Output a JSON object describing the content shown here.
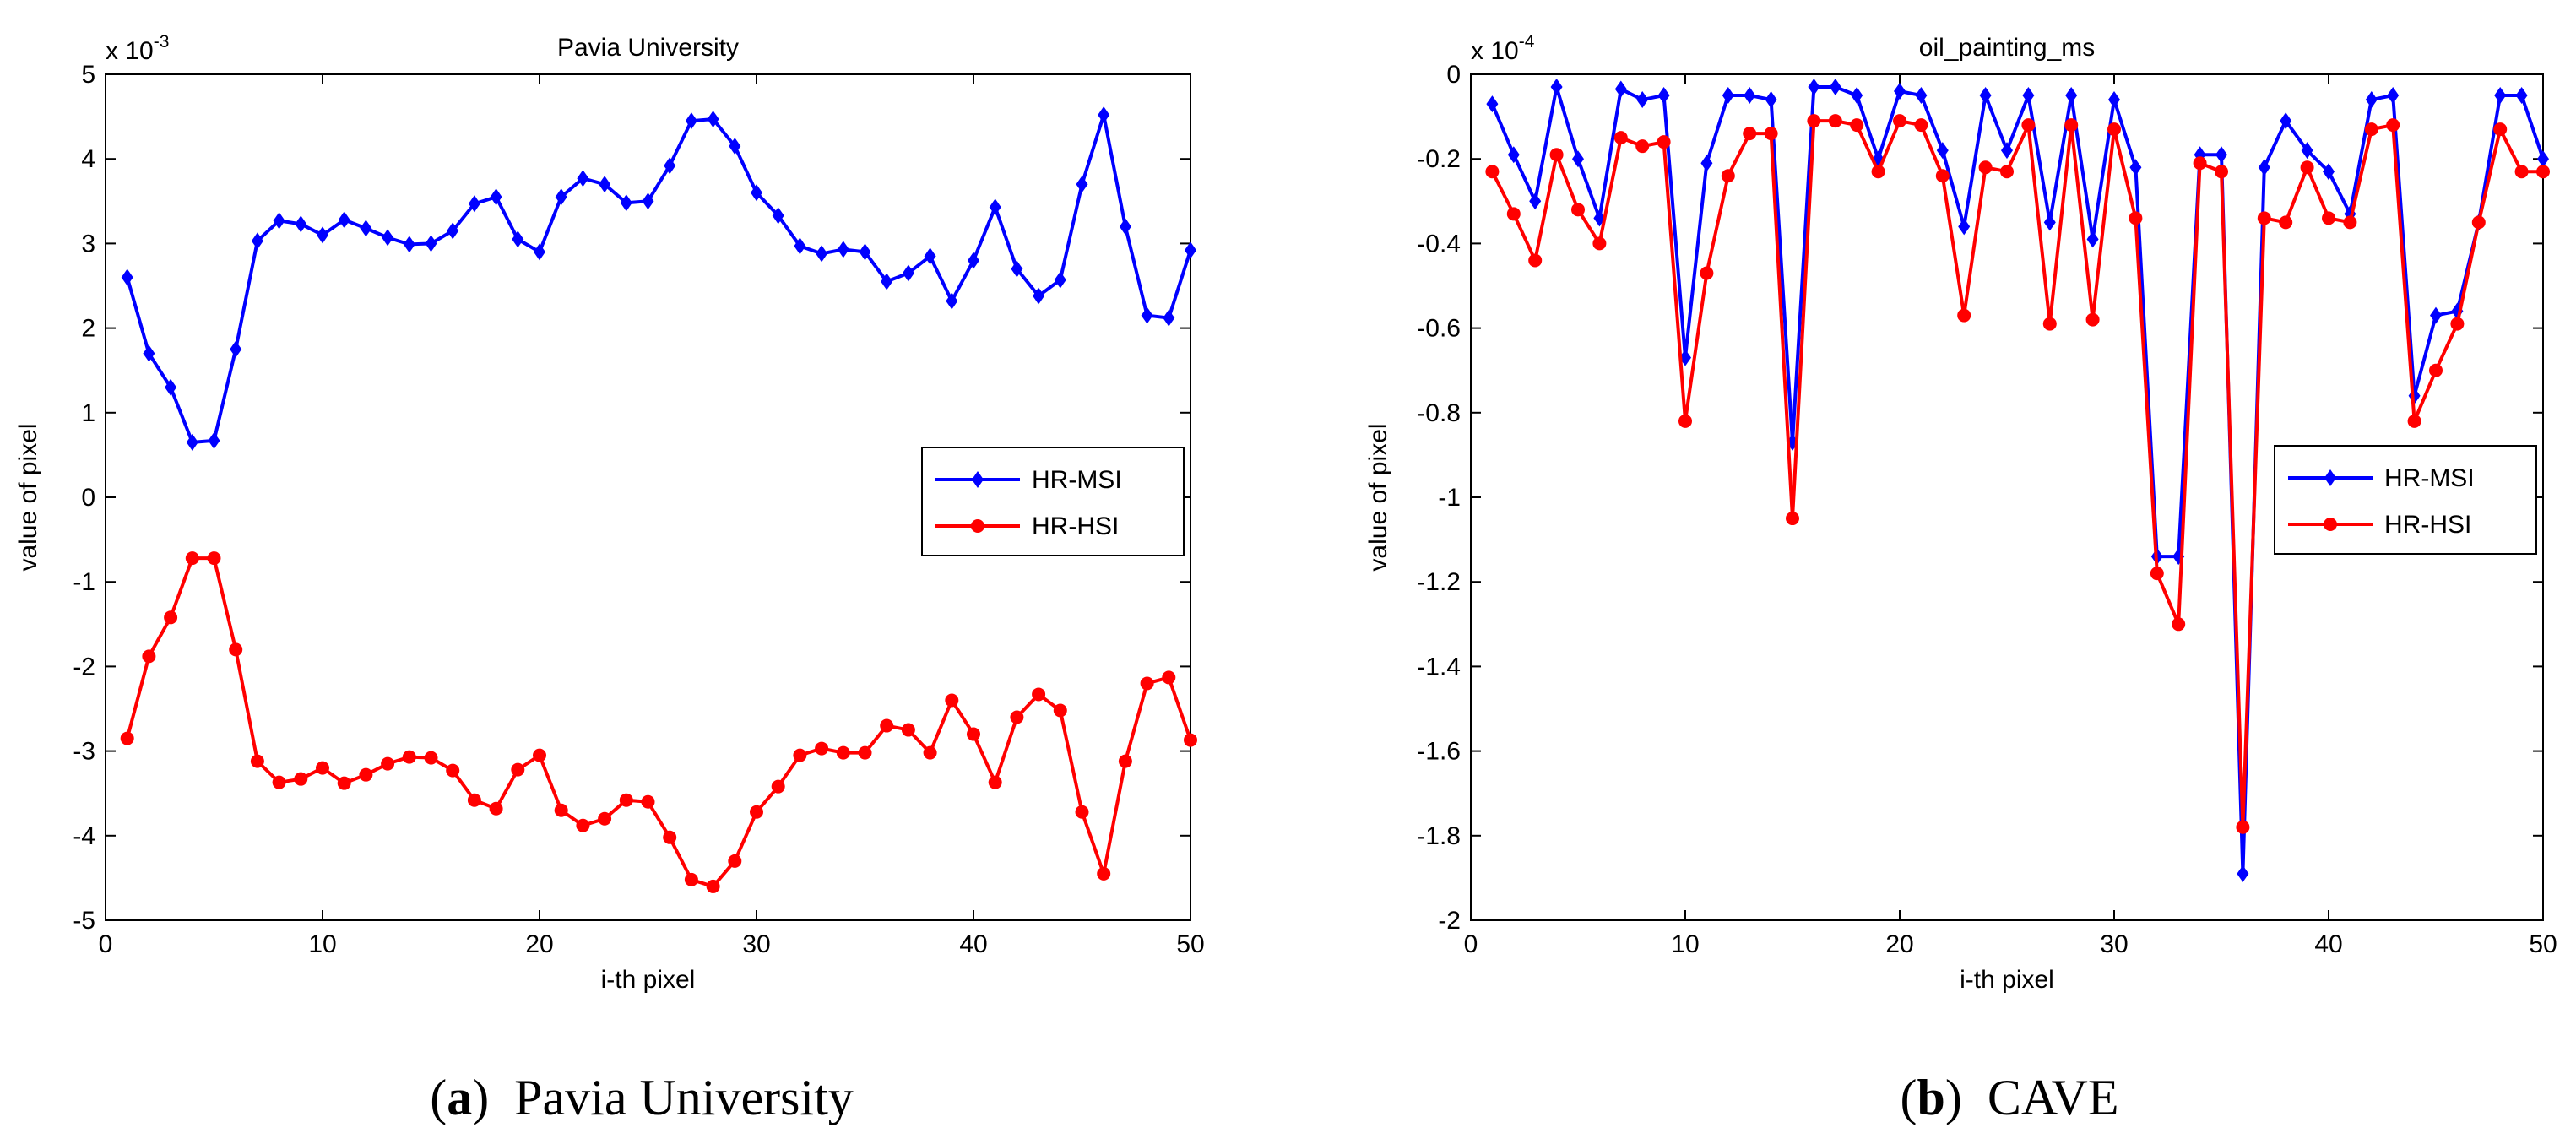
{
  "chart_data": [
    {
      "type": "line",
      "title": "Pavia University",
      "xlabel": "i-th pixel",
      "ylabel": "value of pixel",
      "xlim": [
        0,
        50
      ],
      "ylim": [
        -5,
        5
      ],
      "xticks": [
        "0",
        "10",
        "20",
        "30",
        "40",
        "50"
      ],
      "yticks": [
        "-5",
        "-4",
        "-3",
        "-2",
        "-1",
        "0",
        "1",
        "2",
        "3",
        "4",
        "5"
      ],
      "y_multiplier_base": "x 10",
      "y_multiplier_exp": "-3",
      "legend_position": "center-right",
      "caption_label": "(a)",
      "caption_label_letter": "a",
      "caption_text": "Pavia University",
      "x": [
        1,
        2,
        3,
        4,
        5,
        6,
        7,
        8,
        9,
        10,
        11,
        12,
        13,
        14,
        15,
        16,
        17,
        18,
        19,
        20,
        21,
        22,
        23,
        24,
        25,
        26,
        27,
        28,
        29,
        30,
        31,
        32,
        33,
        34,
        35,
        36,
        37,
        38,
        39,
        40,
        41,
        42,
        43,
        44,
        45,
        46,
        47,
        48,
        49,
        50
      ],
      "series": [
        {
          "name": "HR-MSI",
          "color": "#0000ff",
          "marker": "diamond",
          "values": [
            2.6,
            1.7,
            1.3,
            0.65,
            0.67,
            1.75,
            3.03,
            3.27,
            3.23,
            3.1,
            3.28,
            3.18,
            3.07,
            2.99,
            3.0,
            3.15,
            3.47,
            3.55,
            3.05,
            2.9,
            3.55,
            3.77,
            3.7,
            3.48,
            3.5,
            3.92,
            4.45,
            4.47,
            4.15,
            3.6,
            3.33,
            2.97,
            2.88,
            2.93,
            2.9,
            2.55,
            2.65,
            2.85,
            2.32,
            2.8,
            3.43,
            2.7,
            2.38,
            2.57,
            3.7,
            4.52,
            3.2,
            2.15,
            2.12,
            2.92
          ]
        },
        {
          "name": "HR-HSI",
          "color": "#ff0000",
          "marker": "circle",
          "values": [
            -2.85,
            -1.88,
            -1.42,
            -0.72,
            -0.72,
            -1.8,
            -3.12,
            -3.37,
            -3.33,
            -3.2,
            -3.38,
            -3.28,
            -3.15,
            -3.07,
            -3.08,
            -3.23,
            -3.58,
            -3.68,
            -3.22,
            -3.05,
            -3.7,
            -3.88,
            -3.8,
            -3.58,
            -3.6,
            -4.02,
            -4.52,
            -4.6,
            -4.3,
            -3.72,
            -3.42,
            -3.05,
            -2.97,
            -3.02,
            -3.02,
            -2.7,
            -2.75,
            -3.02,
            -2.4,
            -2.8,
            -3.37,
            -2.6,
            -2.33,
            -2.52,
            -3.72,
            -4.45,
            -3.12,
            -2.2,
            -2.13,
            -2.87
          ]
        }
      ]
    },
    {
      "type": "line",
      "title": "oil_painting_ms",
      "xlabel": "i-th pixel",
      "ylabel": "value of pixel",
      "xlim": [
        0,
        50
      ],
      "ylim": [
        -2,
        0
      ],
      "xticks": [
        "0",
        "10",
        "20",
        "30",
        "40",
        "50"
      ],
      "yticks": [
        "-2",
        "-1.8",
        "-1.6",
        "-1.4",
        "-1.2",
        "-1",
        "-0.8",
        "-0.6",
        "-0.4",
        "-0.2",
        "0"
      ],
      "y_multiplier_base": "x 10",
      "y_multiplier_exp": "-4",
      "legend_position": "center-right",
      "caption_label": "(b)",
      "caption_label_letter": "b",
      "caption_text": "CAVE",
      "x": [
        1,
        2,
        3,
        4,
        5,
        6,
        7,
        8,
        9,
        10,
        11,
        12,
        13,
        14,
        15,
        16,
        17,
        18,
        19,
        20,
        21,
        22,
        23,
        24,
        25,
        26,
        27,
        28,
        29,
        30,
        31,
        32,
        33,
        34,
        35,
        36,
        37,
        38,
        39,
        40,
        41,
        42,
        43,
        44,
        45,
        46,
        47,
        48,
        49,
        50
      ],
      "series": [
        {
          "name": "HR-MSI",
          "color": "#0000ff",
          "marker": "diamond",
          "values": [
            -0.07,
            -0.19,
            -0.3,
            -0.03,
            -0.2,
            -0.34,
            -0.035,
            -0.06,
            -0.05,
            -0.67,
            -0.21,
            -0.05,
            -0.05,
            -0.06,
            -0.87,
            -0.03,
            -0.03,
            -0.05,
            -0.2,
            -0.04,
            -0.05,
            -0.18,
            -0.36,
            -0.05,
            -0.18,
            -0.05,
            -0.35,
            -0.05,
            -0.39,
            -0.06,
            -0.22,
            -1.14,
            -1.14,
            -0.19,
            -0.19,
            -1.89,
            -0.22,
            -0.11,
            -0.18,
            -0.23,
            -0.33,
            -0.06,
            -0.05,
            -0.76,
            -0.57,
            -0.56,
            -0.35,
            -0.05,
            -0.05,
            -0.2
          ]
        },
        {
          "name": "HR-HSI",
          "color": "#ff0000",
          "marker": "circle",
          "values": [
            -0.23,
            -0.33,
            -0.44,
            -0.19,
            -0.32,
            -0.4,
            -0.15,
            -0.17,
            -0.16,
            -0.82,
            -0.47,
            -0.24,
            -0.14,
            -0.14,
            -1.05,
            -0.11,
            -0.11,
            -0.12,
            -0.23,
            -0.11,
            -0.12,
            -0.24,
            -0.57,
            -0.22,
            -0.23,
            -0.12,
            -0.59,
            -0.12,
            -0.58,
            -0.13,
            -0.34,
            -1.18,
            -1.3,
            -0.21,
            -0.23,
            -1.78,
            -0.34,
            -0.35,
            -0.22,
            -0.34,
            -0.35,
            -0.13,
            -0.12,
            -0.82,
            -0.7,
            -0.59,
            -0.35,
            -0.13,
            -0.23,
            -0.23
          ]
        }
      ]
    }
  ]
}
